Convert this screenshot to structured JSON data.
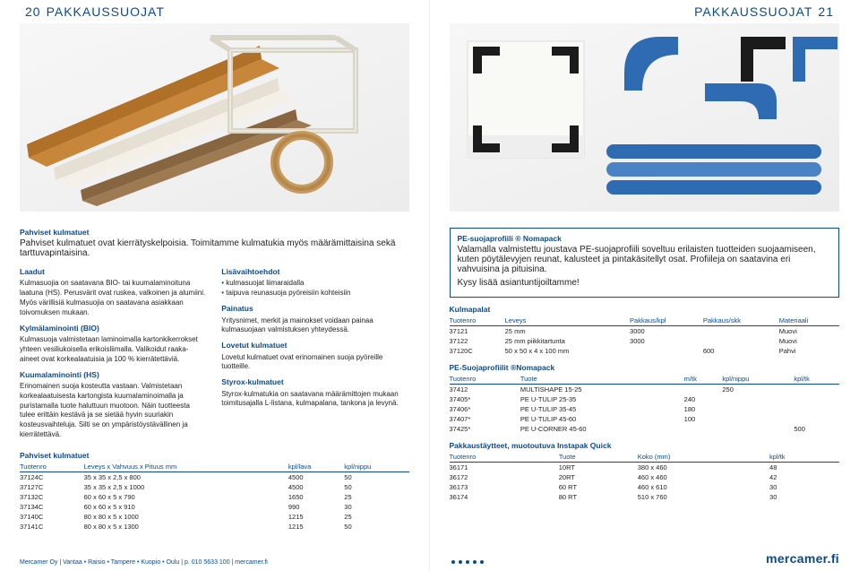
{
  "colors": {
    "brand_blue": "#0a4a8f",
    "bg_grey": "#f3f3f3"
  },
  "left": {
    "page_num": "20",
    "header": "PAKKAUSSUOJAT",
    "intro_title": "Pahviset kulmatuet",
    "intro_body": "Pahviset kulmatuet ovat kierrätyskelpoisia. Toimitamme kulmatukia myös määrämittaisina sekä tarttuvapintaisina.",
    "laadut_title": "Laadut",
    "laadut_body": "Kulmasuojia on saatavana BIO- tai kuumalaminoituna laatuna (HS). Perusvärit ovat ruskea, valkoinen ja alumiini. Myös värillisiä kulmasuojia on saatavana asiakkaan toivomuksen mukaan.",
    "kylma_title": "Kylmälaminointi (BIO)",
    "kylma_body": "Kulmasuoja valmistetaan laminoimalla kartonkikerrokset yhteen vesiliukoisella erikoisliimalla. Valikoidut raaka-aineet ovat korkealaatuisia ja 100 % kierrätettäviä.",
    "kuuma_title": "Kuumalaminointi (HS)",
    "kuuma_body": "Erinomainen suoja kosteutta vastaan. Valmistetaan korkealaatuisesta kartongista kuumalaminoimalla ja puristamalla tuote haluttuun muotoon. Näin tuotteesta tulee erittäin kestävä ja se sietää hyvin suuriakin kosteusvaihteluja. Silti se on ympäristöystävällinen ja kierrätettävä.",
    "lisa_title": "Lisävaihtoehdot",
    "lisa_b1": "kulmasuojat liimaraidalla",
    "lisa_b2": "taipuva reunasuoja pyöreisiin kohteisiin",
    "painatus_title": "Painatus",
    "painatus_body": "Yritysnimet, merkit ja mainokset voidaan painaa kulmasuojaan valmistuksen yhteydessä.",
    "lovetut_title": "Lovetut kulmatuet",
    "lovetut_body": "Lovetut kulmatuet ovat erinomainen suoja pyöreille tuotteille.",
    "styrox_title": "Styrox-kulmatuet",
    "styrox_body": "Styrox-kulmatukia on saatavana määrämittojen mukaan toimitusajalla L-listana, kulmapalana, tankona ja levynä.",
    "t1_title": "Pahviset kulmatuet",
    "t1_cols": [
      "Tuotenro",
      "Leveys x Vahvuus x Pituus mm",
      "kpl/lava",
      "kpl/nippu"
    ],
    "t1_rows": [
      [
        "37124C",
        "35 x 35 x 2,5 x 800",
        "4500",
        "50"
      ],
      [
        "37127C",
        "35 x 35 x 2,5 x 1000",
        "4500",
        "50"
      ],
      [
        "37132C",
        "60 x 60 x 5 x 790",
        "1650",
        "25"
      ],
      [
        "37134C",
        "60 x 60 x 5 x 910",
        "990",
        "30"
      ],
      [
        "37140C",
        "80 x 80 x 5 x 1000",
        "1215",
        "25"
      ],
      [
        "37141C",
        "80 x 80 x 5 x 1300",
        "1215",
        "50"
      ]
    ],
    "footer": "Mercamer Oy | Vantaa • Raisio • Tampere • Kuopio • Oulu | p. 010 5633 100 | mercamer.fi"
  },
  "right": {
    "page_num": "21",
    "header": "PAKKAUSSUOJAT",
    "pebox_title": "PE-suojaprofiili ® Nomapack",
    "pebox_body": "Valamalla valmistettu joustava PE-suojaprofiili soveltuu erilaisten tuotteiden suojaamiseen, kuten pöytälevyjen reunat, kalusteet ja pintakäsitellyt osat. Profiileja on saatavina eri vahvuisina ja pituisina.",
    "pebox_cta": "Kysy lisää asiantuntijoiltamme!",
    "t2_title": "Kulmapalat",
    "t2_cols": [
      "Tuotenro",
      "Leveys",
      "Pakkaus/kpl",
      "Pakkaus/skk",
      "Materiaali"
    ],
    "t2_rows": [
      [
        "37121",
        "25 mm",
        "3000",
        "",
        "Muovi"
      ],
      [
        "37122",
        "25 mm piikkitartunta",
        "3000",
        "",
        "Muovi"
      ],
      [
        "37120C",
        "50 x 50 x 4 x 100 mm",
        "",
        "600",
        "Pahvi"
      ]
    ],
    "t3_title": "PE-Suojaprofiilit ®Nomapack",
    "t3_cols": [
      "Tuotenro",
      "Tuote",
      "m/tk",
      "kpl/nippu",
      "kpl/tk"
    ],
    "t3_rows": [
      [
        "37412",
        "MULTISHAPE 15-25",
        "",
        "250",
        ""
      ],
      [
        "37405*",
        "PE U-TULIP 25-35",
        "240",
        "",
        ""
      ],
      [
        "37406*",
        "PE U-TULIP 35-45",
        "180",
        "",
        ""
      ],
      [
        "37407*",
        "PE U-TULIP 45-60",
        "100",
        "",
        ""
      ],
      [
        "37425*",
        "PE U-CORNER 45-60",
        "",
        "",
        "500"
      ]
    ],
    "t4_title": "Pakkaustäytteet, muotoutuva Instapak Quick",
    "t4_cols": [
      "Tuotenro",
      "Tuote",
      "Koko (mm)",
      "kpl/tk"
    ],
    "t4_rows": [
      [
        "36171",
        "10RT",
        "380 x 460",
        "48"
      ],
      [
        "36172",
        "20RT",
        "460 x 460",
        "42"
      ],
      [
        "36173",
        "60 RT",
        "460 x 610",
        "30"
      ],
      [
        "36174",
        "80 RT",
        "510 x 760",
        "30"
      ]
    ],
    "brand": "mercamer.fi"
  }
}
